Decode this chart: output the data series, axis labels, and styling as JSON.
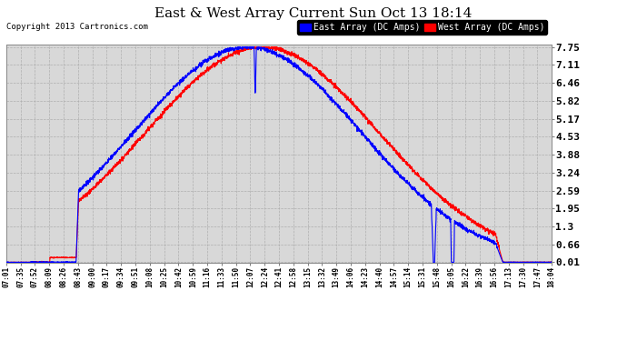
{
  "title": "East & West Array Current Sun Oct 13 18:14",
  "copyright": "Copyright 2013 Cartronics.com",
  "legend_east": "East Array (DC Amps)",
  "legend_west": "West Array (DC Amps)",
  "east_color": "#0000ff",
  "west_color": "#ff0000",
  "plot_bg_color": "#d8d8d8",
  "fig_bg_color": "#ffffff",
  "yticks": [
    0.01,
    0.66,
    1.3,
    1.95,
    2.59,
    3.24,
    3.88,
    4.53,
    5.17,
    5.82,
    6.46,
    7.11,
    7.75
  ],
  "xtick_labels": [
    "07:01",
    "07:35",
    "07:52",
    "08:09",
    "08:26",
    "08:43",
    "09:00",
    "09:17",
    "09:34",
    "09:51",
    "10:08",
    "10:25",
    "10:42",
    "10:59",
    "11:16",
    "11:33",
    "11:50",
    "12:07",
    "12:24",
    "12:41",
    "12:58",
    "13:15",
    "13:32",
    "13:49",
    "14:06",
    "14:23",
    "14:40",
    "14:57",
    "15:14",
    "15:31",
    "15:48",
    "16:05",
    "16:22",
    "16:39",
    "16:56",
    "17:13",
    "17:30",
    "17:47",
    "18:04"
  ],
  "ymin": 0.01,
  "ymax": 7.75,
  "grid_color": "#aaaaaa",
  "title_fontsize": 11,
  "copyright_fontsize": 6.5,
  "legend_fontsize": 7
}
